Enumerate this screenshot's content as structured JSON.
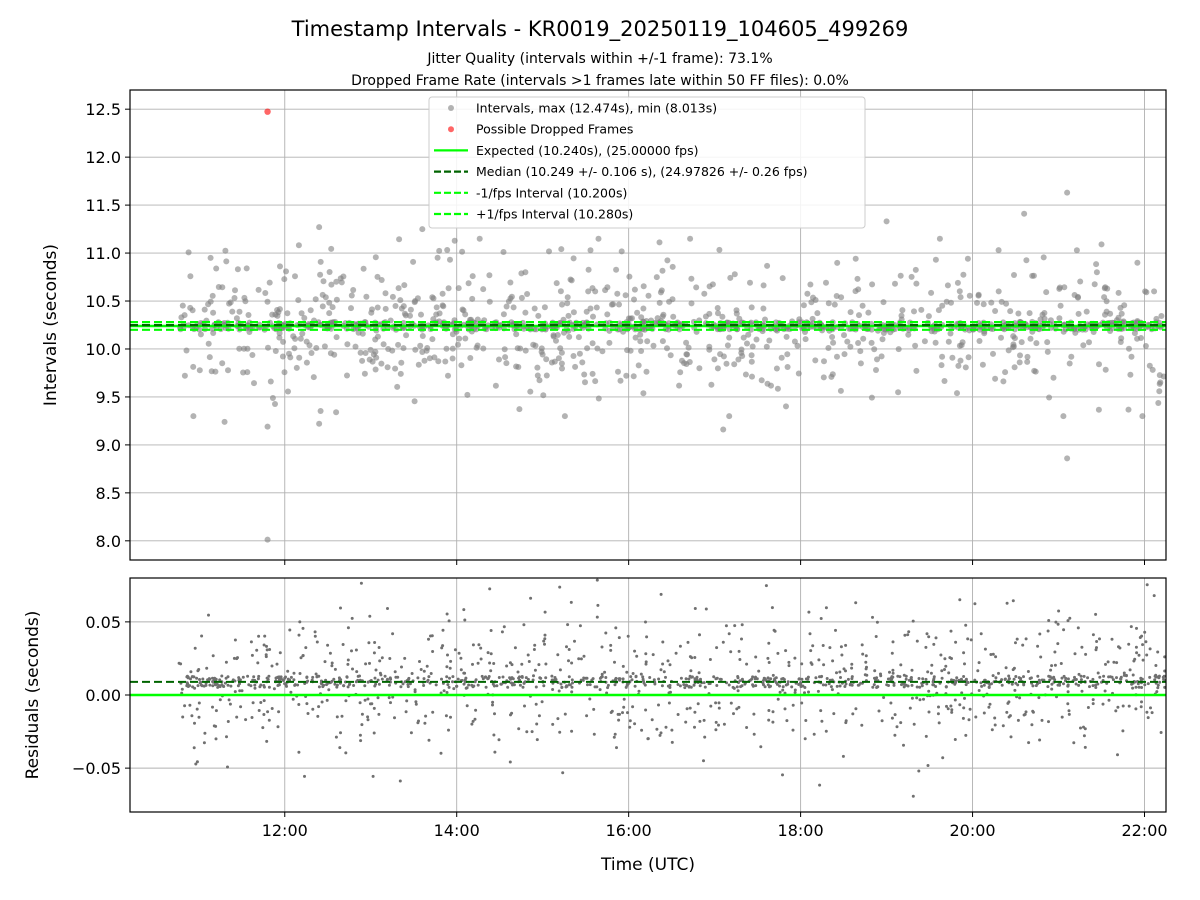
{
  "chart_data": [
    {
      "type": "scatter",
      "panel": "intervals",
      "title": "Timestamp Intervals - KR0019_20250119_104605_499269",
      "subtitles": [
        "Jitter Quality (intervals within +/-1 frame): 73.1%",
        "Dropped Frame Rate (intervals >1 frames late within 50 FF files): 0.0%"
      ],
      "ylabel": "Intervals (seconds)",
      "xlim_hours": [
        10.2,
        22.25
      ],
      "ylim": [
        7.8,
        12.7
      ],
      "yticks": [
        8.0,
        8.5,
        9.0,
        9.5,
        10.0,
        10.5,
        11.0,
        11.5,
        12.0,
        12.5
      ],
      "ytick_labels": [
        "8.0",
        "8.5",
        "9.0",
        "9.5",
        "10.0",
        "10.5",
        "11.0",
        "11.5",
        "12.0",
        "12.5"
      ],
      "grid": true,
      "legend_position": "upper-center",
      "time_range_hours": [
        10.77,
        22.25
      ],
      "n_points": 1300,
      "series": [
        {
          "name": "Intervals, max (12.474s), min (8.013s)",
          "kind": "points",
          "color": "#808080",
          "center": 10.24,
          "spread": 0.38
        },
        {
          "name": "Possible Dropped Frames",
          "kind": "points",
          "color": "#ff0000",
          "points": [
            [
              11.8,
              12.474
            ]
          ]
        },
        {
          "name": "Expected (10.240s), (25.00000 fps)",
          "kind": "hline",
          "y": 10.24,
          "color": "#00ff00",
          "style": "solid"
        },
        {
          "name": "Median (10.249 +/- 0.106 s), (24.97826 +/- 0.26 fps)",
          "kind": "hline",
          "y": 10.249,
          "color": "#006400",
          "style": "dashed"
        },
        {
          "name": "-1/fps Interval (10.200s)",
          "kind": "hline",
          "y": 10.2,
          "color": "#00ff00",
          "style": "dashed"
        },
        {
          "name": "+1/fps Interval (10.280s)",
          "kind": "hline",
          "y": 10.28,
          "color": "#00ff00",
          "style": "dashed"
        }
      ],
      "notable_points": [
        [
          11.8,
          12.474
        ],
        [
          11.8,
          8.013
        ],
        [
          21.1,
          11.63
        ],
        [
          21.1,
          8.86
        ],
        [
          11.3,
          9.24
        ],
        [
          11.8,
          9.19
        ],
        [
          12.4,
          9.22
        ],
        [
          12.4,
          11.27
        ],
        [
          13.6,
          11.25
        ],
        [
          17.1,
          9.16
        ],
        [
          19.0,
          11.33
        ],
        [
          20.6,
          11.41
        ],
        [
          21.5,
          11.09
        ]
      ]
    },
    {
      "type": "scatter",
      "panel": "residuals",
      "xlabel": "Time (UTC)",
      "ylabel": "Residuals (seconds)",
      "xlim_hours": [
        10.2,
        22.25
      ],
      "ylim": [
        -0.08,
        0.08
      ],
      "yticks": [
        -0.05,
        0.0,
        0.05
      ],
      "ytick_labels": [
        "−0.05",
        "0.00",
        "0.05"
      ],
      "xticks_hours": [
        12,
        14,
        16,
        18,
        20,
        22
      ],
      "xtick_labels": [
        "12:00",
        "14:00",
        "16:00",
        "18:00",
        "20:00",
        "22:00"
      ],
      "grid": true,
      "n_points": 1500,
      "series": [
        {
          "kind": "points",
          "color": "#707070",
          "center": 0.009,
          "spread": 0.025
        },
        {
          "kind": "hline",
          "y": 0.0,
          "color": "#00ff00",
          "style": "solid"
        },
        {
          "kind": "hline",
          "y": 0.009,
          "color": "#006400",
          "style": "dashed"
        }
      ]
    }
  ]
}
